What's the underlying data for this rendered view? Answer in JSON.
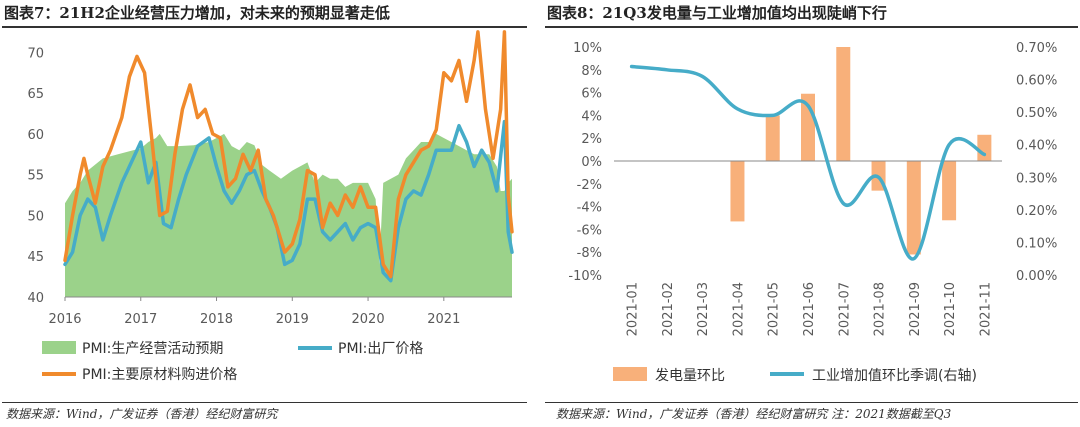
{
  "left": {
    "title": "图表7：21H2企业经营压力增加，对未来的预期显著走低",
    "source": "数据来源：Wind，广发证券（香港）经纪财富研究",
    "chart_data": {
      "type": "line",
      "x_ticks": [
        "2016",
        "2017",
        "2018",
        "2019",
        "2020",
        "2021"
      ],
      "y_ticks": [
        "40",
        "45",
        "50",
        "55",
        "60",
        "65",
        "70"
      ],
      "ylim": [
        40,
        72
      ],
      "x_range": [
        2016.0,
        2021.9
      ],
      "series": [
        {
          "name": "PMI:生产经营活动预期",
          "kind": "area",
          "color": "#9BD28A",
          "points": [
            [
              2016.0,
              51.5
            ],
            [
              2016.1,
              53.0
            ],
            [
              2016.2,
              54.0
            ],
            [
              2016.3,
              55.5
            ],
            [
              2016.5,
              57.0
            ],
            [
              2016.7,
              57.5
            ],
            [
              2016.9,
              58.0
            ],
            [
              2017.0,
              58.2
            ],
            [
              2017.1,
              59.0
            ],
            [
              2017.2,
              59.5
            ],
            [
              2017.25,
              60.0
            ],
            [
              2017.35,
              58.5
            ],
            [
              2017.5,
              58.5
            ],
            [
              2017.7,
              58.6
            ],
            [
              2017.9,
              59.0
            ],
            [
              2018.0,
              59.5
            ],
            [
              2018.1,
              60.0
            ],
            [
              2018.2,
              58.5
            ],
            [
              2018.3,
              58.0
            ],
            [
              2018.4,
              59.0
            ],
            [
              2018.5,
              58.6
            ],
            [
              2018.6,
              56.2
            ],
            [
              2018.7,
              55.5
            ],
            [
              2018.85,
              54.5
            ],
            [
              2019.0,
              55.5
            ],
            [
              2019.1,
              56.0
            ],
            [
              2019.2,
              56.5
            ],
            [
              2019.3,
              54.0
            ],
            [
              2019.4,
              55.0
            ],
            [
              2019.5,
              54.5
            ],
            [
              2019.6,
              54.5
            ],
            [
              2019.7,
              53.5
            ],
            [
              2019.8,
              54.0
            ],
            [
              2019.9,
              54.0
            ],
            [
              2020.0,
              54.0
            ],
            [
              2020.1,
              52.0
            ],
            [
              2020.15,
              44.0
            ],
            [
              2020.2,
              54.0
            ],
            [
              2020.3,
              54.5
            ],
            [
              2020.4,
              55.0
            ],
            [
              2020.5,
              57.0
            ],
            [
              2020.6,
              58.0
            ],
            [
              2020.7,
              59.0
            ],
            [
              2020.8,
              59.0
            ],
            [
              2020.9,
              60.0
            ],
            [
              2021.0,
              59.5
            ],
            [
              2021.1,
              59.0
            ],
            [
              2021.2,
              58.5
            ],
            [
              2021.3,
              58.0
            ],
            [
              2021.4,
              57.5
            ],
            [
              2021.5,
              57.5
            ],
            [
              2021.6,
              57.5
            ],
            [
              2021.7,
              56.0
            ],
            [
              2021.75,
              53.0
            ],
            [
              2021.8,
              53.0
            ],
            [
              2021.85,
              54.0
            ],
            [
              2021.9,
              54.5
            ]
          ]
        },
        {
          "name": "PMI:出厂价格",
          "kind": "line",
          "color": "#46ACC8",
          "points": [
            [
              2016.0,
              44.0
            ],
            [
              2016.1,
              45.5
            ],
            [
              2016.2,
              50.0
            ],
            [
              2016.3,
              52.0
            ],
            [
              2016.4,
              51.0
            ],
            [
              2016.5,
              47.0
            ],
            [
              2016.6,
              50.0
            ],
            [
              2016.75,
              54.0
            ],
            [
              2016.9,
              57.0
            ],
            [
              2017.0,
              59.0
            ],
            [
              2017.1,
              54.0
            ],
            [
              2017.2,
              56.5
            ],
            [
              2017.3,
              49.0
            ],
            [
              2017.4,
              48.5
            ],
            [
              2017.5,
              52.0
            ],
            [
              2017.6,
              55.0
            ],
            [
              2017.75,
              58.5
            ],
            [
              2017.9,
              59.5
            ],
            [
              2018.0,
              56.0
            ],
            [
              2018.1,
              53.0
            ],
            [
              2018.2,
              51.5
            ],
            [
              2018.3,
              53.0
            ],
            [
              2018.4,
              55.0
            ],
            [
              2018.5,
              55.5
            ],
            [
              2018.6,
              53.0
            ],
            [
              2018.7,
              51.0
            ],
            [
              2018.8,
              48.5
            ],
            [
              2018.9,
              44.0
            ],
            [
              2019.0,
              44.5
            ],
            [
              2019.1,
              46.5
            ],
            [
              2019.2,
              52.0
            ],
            [
              2019.3,
              52.0
            ],
            [
              2019.4,
              48.0
            ],
            [
              2019.5,
              47.0
            ],
            [
              2019.6,
              48.0
            ],
            [
              2019.7,
              49.0
            ],
            [
              2019.8,
              47.0
            ],
            [
              2019.9,
              48.5
            ],
            [
              2020.0,
              49.0
            ],
            [
              2020.1,
              48.5
            ],
            [
              2020.2,
              43.0
            ],
            [
              2020.3,
              42.0
            ],
            [
              2020.4,
              48.5
            ],
            [
              2020.5,
              52.0
            ],
            [
              2020.6,
              53.0
            ],
            [
              2020.7,
              52.5
            ],
            [
              2020.8,
              55.0
            ],
            [
              2020.9,
              58.0
            ],
            [
              2021.0,
              58.0
            ],
            [
              2021.1,
              58.0
            ],
            [
              2021.2,
              61.0
            ],
            [
              2021.3,
              59.0
            ],
            [
              2021.4,
              56.0
            ],
            [
              2021.5,
              58.0
            ],
            [
              2021.6,
              56.5
            ],
            [
              2021.7,
              53.0
            ],
            [
              2021.8,
              61.5
            ],
            [
              2021.85,
              48.0
            ],
            [
              2021.9,
              45.5
            ]
          ]
        },
        {
          "name": "PMI:主要原材料购进价格",
          "kind": "line",
          "color": "#F08A2C",
          "points": [
            [
              2016.0,
              44.5
            ],
            [
              2016.1,
              50.0
            ],
            [
              2016.2,
              55.0
            ],
            [
              2016.25,
              57.0
            ],
            [
              2016.3,
              55.0
            ],
            [
              2016.4,
              51.5
            ],
            [
              2016.5,
              56.0
            ],
            [
              2016.6,
              58.0
            ],
            [
              2016.75,
              62.0
            ],
            [
              2016.85,
              67.0
            ],
            [
              2016.95,
              69.5
            ],
            [
              2017.05,
              67.5
            ],
            [
              2017.15,
              59.0
            ],
            [
              2017.25,
              50.0
            ],
            [
              2017.35,
              50.5
            ],
            [
              2017.45,
              57.5
            ],
            [
              2017.55,
              63.0
            ],
            [
              2017.65,
              66.0
            ],
            [
              2017.75,
              62.0
            ],
            [
              2017.85,
              63.0
            ],
            [
              2017.95,
              60.0
            ],
            [
              2018.05,
              59.5
            ],
            [
              2018.15,
              53.5
            ],
            [
              2018.25,
              54.5
            ],
            [
              2018.35,
              57.5
            ],
            [
              2018.45,
              55.5
            ],
            [
              2018.55,
              58.0
            ],
            [
              2018.65,
              52.0
            ],
            [
              2018.75,
              50.0
            ],
            [
              2018.9,
              45.5
            ],
            [
              2019.0,
              46.5
            ],
            [
              2019.1,
              49.5
            ],
            [
              2019.2,
              55.5
            ],
            [
              2019.3,
              55.0
            ],
            [
              2019.4,
              48.5
            ],
            [
              2019.5,
              51.5
            ],
            [
              2019.6,
              50.0
            ],
            [
              2019.7,
              52.5
            ],
            [
              2019.8,
              51.0
            ],
            [
              2019.9,
              53.5
            ],
            [
              2020.0,
              51.0
            ],
            [
              2020.1,
              51.0
            ],
            [
              2020.2,
              44.0
            ],
            [
              2020.3,
              42.5
            ],
            [
              2020.4,
              52.0
            ],
            [
              2020.5,
              55.0
            ],
            [
              2020.6,
              56.5
            ],
            [
              2020.7,
              58.0
            ],
            [
              2020.8,
              58.5
            ],
            [
              2020.9,
              60.5
            ],
            [
              2021.0,
              67.5
            ],
            [
              2021.1,
              66.5
            ],
            [
              2021.2,
              69.0
            ],
            [
              2021.3,
              64.0
            ],
            [
              2021.4,
              69.0
            ],
            [
              2021.45,
              72.5
            ],
            [
              2021.55,
              63.0
            ],
            [
              2021.65,
              57.0
            ],
            [
              2021.75,
              63.0
            ],
            [
              2021.8,
              72.5
            ],
            [
              2021.85,
              52.5
            ],
            [
              2021.9,
              48.0
            ]
          ]
        }
      ]
    }
  },
  "right": {
    "title": "图表8：21Q3发电量与工业增加值均出现陡峭下行",
    "source": "数据来源：Wind，广发证券（香港）经纪财富研究 注：2021数据截至Q3",
    "chart_data": {
      "type": "bar+line",
      "categories": [
        "2021-01",
        "2021-02",
        "2021-03",
        "2021-04",
        "2021-05",
        "2021-06",
        "2021-07",
        "2021-08",
        "2021-09",
        "2021-10",
        "2021-11"
      ],
      "y_left_ticks": [
        "-10%",
        "-8%",
        "-6%",
        "-4%",
        "-2%",
        "0%",
        "2%",
        "4%",
        "6%",
        "8%",
        "10%"
      ],
      "y_left_lim": [
        -10,
        10
      ],
      "y_right_ticks": [
        "0.00%",
        "0.10%",
        "0.20%",
        "0.30%",
        "0.40%",
        "0.50%",
        "0.60%",
        "0.70%"
      ],
      "y_right_lim": [
        0,
        0.7
      ],
      "series": [
        {
          "name": "发电量环比",
          "kind": "bar",
          "color": "#F8B07A",
          "values": [
            null,
            null,
            null,
            -5.3,
            4.0,
            5.9,
            10.0,
            -2.6,
            -8.2,
            -5.2,
            2.3
          ]
        },
        {
          "name": "工业增加值环比季调(右轴)",
          "kind": "line",
          "color": "#46ACC8",
          "values": [
            0.64,
            0.63,
            0.61,
            0.51,
            0.49,
            0.52,
            0.22,
            0.3,
            0.05,
            0.4,
            0.37
          ]
        }
      ]
    }
  }
}
